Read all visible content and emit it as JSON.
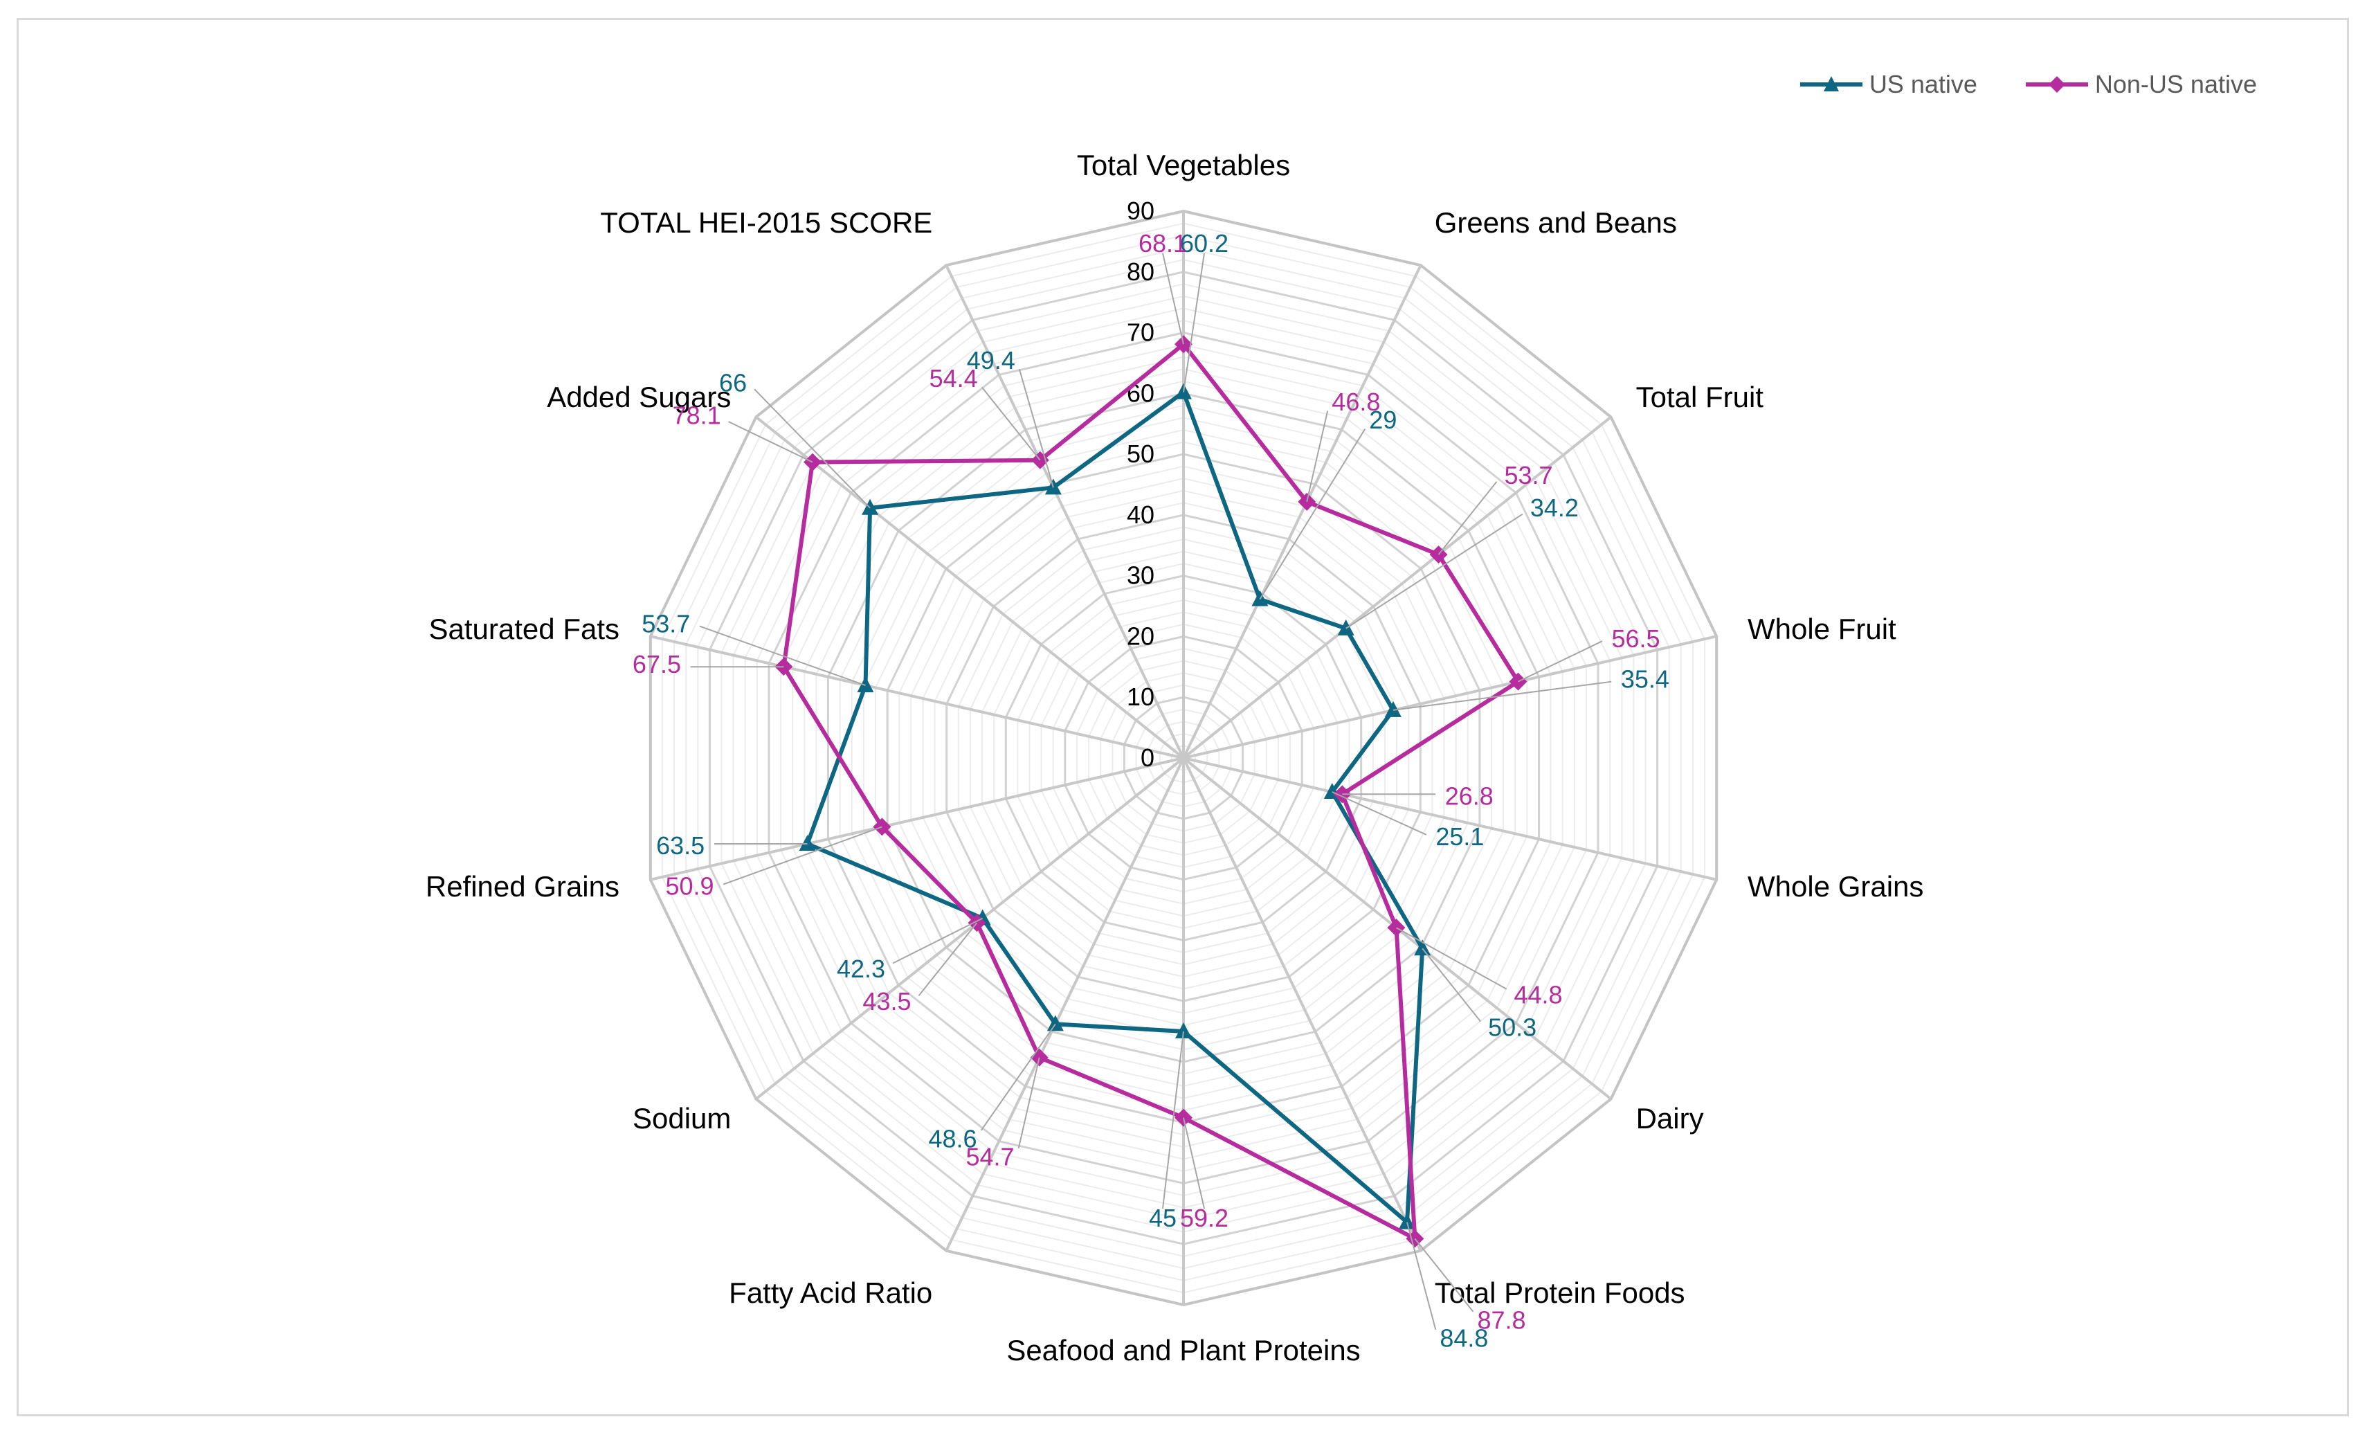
{
  "chart_data": {
    "type": "radar",
    "title": "",
    "categories": [
      "Total Vegetables",
      "Greens and Beans",
      "Total Fruit",
      "Whole Fruit",
      "Whole Grains",
      "Dairy",
      "Total Protein Foods",
      "Seafood and Plant Proteins",
      "Fatty Acid Ratio",
      "Sodium",
      "Refined Grains",
      "Saturated Fats",
      "Added Sugars",
      "TOTAL HEI-2015 SCORE"
    ],
    "axis": {
      "min": 0,
      "max": 90,
      "major_step": 10,
      "minor_step": 2,
      "ticks": [
        "0",
        "10",
        "20",
        "30",
        "40",
        "50",
        "60",
        "70",
        "80",
        "90"
      ]
    },
    "series": [
      {
        "name": "US native",
        "color": "#0e6782",
        "marker": "triangle",
        "values": [
          60.2,
          29,
          34.2,
          35.4,
          25.1,
          50.3,
          84.8,
          45,
          48.6,
          42.3,
          63.5,
          53.7,
          66,
          49.4
        ]
      },
      {
        "name": "Non-US native",
        "color": "#b62b9e",
        "marker": "diamond",
        "values": [
          68.1,
          46.8,
          53.7,
          56.5,
          26.8,
          44.8,
          87.8,
          59.2,
          54.7,
          43.5,
          50.9,
          67.5,
          78.1,
          54.4
        ]
      }
    ],
    "legend": {
      "position": "top-right"
    }
  }
}
